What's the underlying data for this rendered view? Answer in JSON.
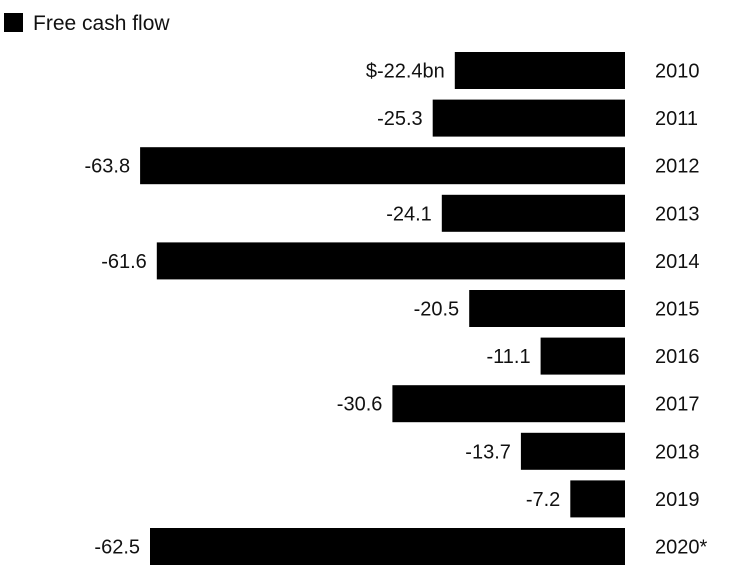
{
  "chart_data": {
    "type": "bar",
    "orientation": "horizontal",
    "legend": {
      "label": "Free cash flow",
      "placement": "top-left",
      "color": "#000000"
    },
    "categories": [
      "2010",
      "2011",
      "2012",
      "2013",
      "2014",
      "2015",
      "2016",
      "2017",
      "2018",
      "2019",
      "2020*"
    ],
    "series": [
      {
        "name": "Free cash flow",
        "color": "#000000",
        "values": [
          -22.4,
          -25.3,
          -63.8,
          -24.1,
          -61.6,
          -20.5,
          -11.1,
          -30.6,
          -13.7,
          -7.2,
          -62.5
        ],
        "data_labels": [
          "$-22.4bn",
          "-25.3",
          "-63.8",
          "-24.1",
          "-61.6",
          "-20.5",
          "-11.1",
          "-30.6",
          "-13.7",
          "-7.2",
          "-62.5"
        ]
      }
    ],
    "unit": "bn",
    "grid": false,
    "title": "",
    "xlabel": "",
    "ylabel": ""
  }
}
